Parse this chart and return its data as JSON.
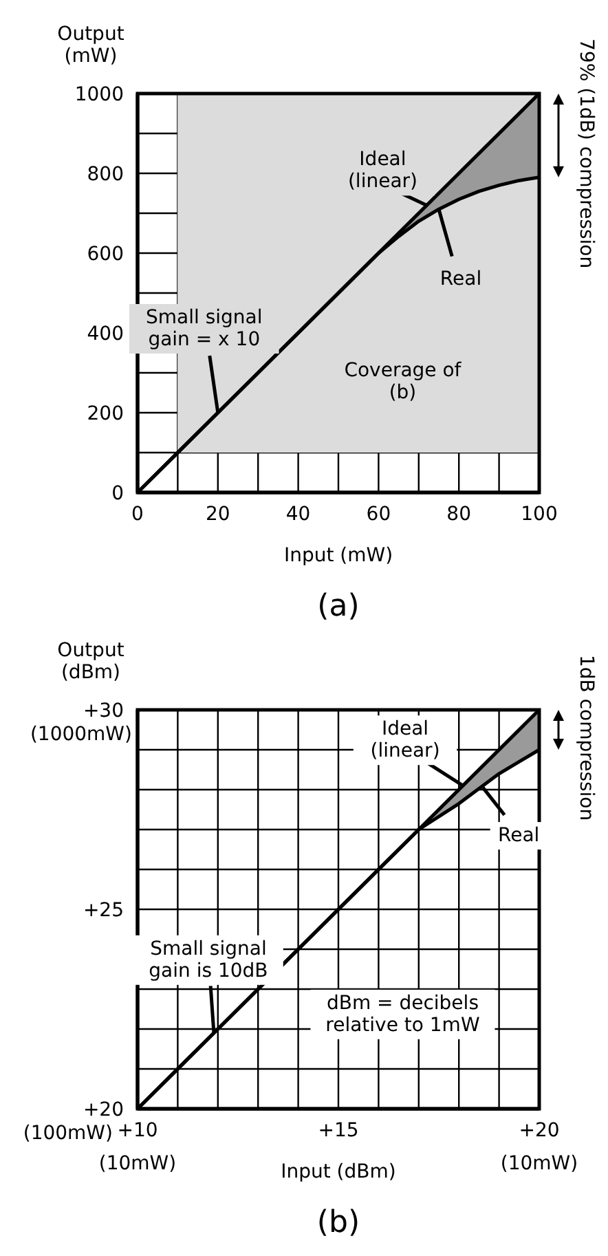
{
  "chart_data": [
    {
      "type": "line",
      "xlabel": "Input (mW)",
      "ylabel": "Output\n(mW)",
      "xlim": [
        0,
        100
      ],
      "ylim": [
        0,
        1000
      ],
      "xticks": [
        0,
        {
          "value": 10,
          "label": null
        },
        20,
        {
          "value": 30,
          "label": null
        },
        40,
        {
          "value": 50,
          "label": null
        },
        60,
        {
          "value": 70,
          "label": null
        },
        80,
        {
          "value": 90,
          "label": null
        },
        100
      ],
      "yticks": [
        0,
        {
          "value": 100,
          "label": null
        },
        200,
        {
          "value": 300,
          "label": null
        },
        400,
        {
          "value": 500,
          "label": null
        },
        600,
        {
          "value": 700,
          "label": null
        },
        800,
        {
          "value": 900,
          "label": null
        },
        1000
      ],
      "grid": true,
      "marker": "none",
      "line_style": "solid",
      "bands": [
        {
          "axis": "x",
          "from": 10,
          "to": 100,
          "color": "#dcdcdc"
        },
        {
          "axis": "y",
          "from": 100,
          "to": 1000,
          "color": "#dcdcdc"
        }
      ],
      "series": [
        {
          "color": "#000000",
          "x": [
            0,
            100
          ],
          "values": [
            0,
            1000
          ]
        },
        {
          "color": "#000000",
          "x": [
            0,
            60,
            65,
            70,
            75,
            80,
            85,
            90,
            95,
            100
          ],
          "values": [
            0,
            600,
            642,
            680,
            710,
            735,
            755,
            770,
            782,
            790
          ],
          "lower": [
            0,
            600,
            642,
            680,
            710,
            735,
            755,
            770,
            782,
            790
          ],
          "upper": [
            0,
            600,
            650,
            700,
            750,
            800,
            850,
            900,
            950,
            1000
          ]
        }
      ],
      "annotations": [
        {
          "text": "Ideal\n(linear)",
          "x": 72,
          "y": 720
        },
        {
          "text": "Real",
          "x": 75,
          "y": 710
        },
        {
          "text": "Small signal\ngain = x 10",
          "x": 20,
          "y": 200
        },
        "Coverage of\n(b)",
        "79% (1dB) compression",
        "(a)"
      ]
    },
    {
      "type": "line",
      "xlabel": "Input (dBm)",
      "ylabel": "Output\n(dBm)",
      "xlim": [
        10,
        20
      ],
      "ylim": [
        20,
        30
      ],
      "xticks": [
        {
          "value": 10,
          "label": "+10"
        },
        {
          "value": 11,
          "label": null
        },
        {
          "value": 12,
          "label": null
        },
        {
          "value": 13,
          "label": null
        },
        {
          "value": 14,
          "label": null
        },
        {
          "value": 15,
          "label": "+15"
        },
        {
          "value": 16,
          "label": null
        },
        {
          "value": 17,
          "label": null
        },
        {
          "value": 18,
          "label": null
        },
        {
          "value": 19,
          "label": null
        },
        {
          "value": 20,
          "label": "+20"
        }
      ],
      "yticks": [
        {
          "value": 20,
          "label": "+20"
        },
        {
          "value": 21,
          "label": null
        },
        {
          "value": 22,
          "label": null
        },
        {
          "value": 23,
          "label": null
        },
        {
          "value": 24,
          "label": null
        },
        {
          "value": 25,
          "label": "+25"
        },
        {
          "value": 26,
          "label": null
        },
        {
          "value": 27,
          "label": null
        },
        {
          "value": 28,
          "label": null
        },
        {
          "value": 29,
          "label": null
        },
        {
          "value": 30,
          "label": "+30"
        }
      ],
      "grid": true,
      "marker": "none",
      "line_style": "solid",
      "series": [
        {
          "color": "#000000",
          "x": [
            10,
            20
          ],
          "values": [
            20,
            30
          ]
        },
        {
          "color": "#000000",
          "x": [
            10,
            17,
            18,
            19,
            20
          ],
          "values": [
            20,
            27,
            27.65,
            28.4,
            29
          ],
          "lower": [
            20,
            27,
            27.65,
            28.4,
            29
          ],
          "upper": [
            20,
            27,
            28,
            29,
            30
          ]
        }
      ],
      "annotations": [
        {
          "text": "Ideal\n(linear)",
          "x": 18.1,
          "y": 28.1
        },
        {
          "text": "Real",
          "x": 18.6,
          "y": 28.05
        },
        {
          "text": "Small signal\ngain is 10dB",
          "x": 11.9,
          "y": 21.9
        },
        "dBm = decibels\nrelative to 1mW",
        "1dB compression",
        "(b)",
        "(10mW)",
        "(10mW)",
        "(100mW)",
        "(1000mW)"
      ]
    }
  ]
}
